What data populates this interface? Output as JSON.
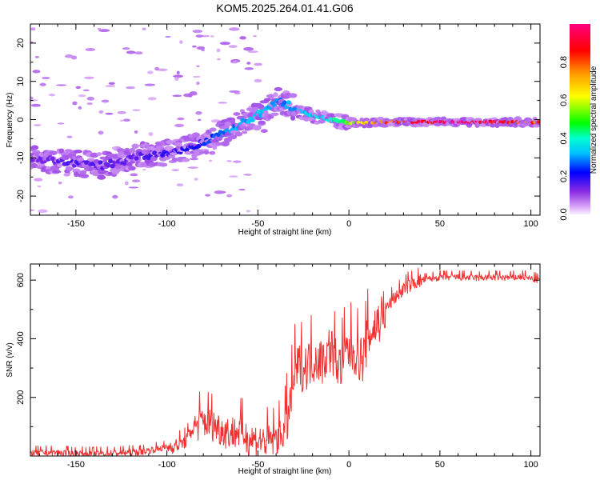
{
  "title": "KOM5.2025.264.01.41.G06",
  "colors": {
    "snr_line": "#f03030",
    "frame": "#000000",
    "background": "#ffffff"
  },
  "chart_data": [
    {
      "type": "heatmap",
      "title": "KOM5.2025.264.01.41.G06",
      "xlabel": "Height of straight line (km)",
      "ylabel": "Frequency (Hz)",
      "xlim": [
        -175,
        105
      ],
      "ylim": [
        -25,
        25
      ],
      "xticks": [
        -150,
        -100,
        -50,
        0,
        50,
        100
      ],
      "yticks": [
        -20,
        -10,
        0,
        10,
        20
      ],
      "colorbar": {
        "label": "Normalized spectral amplitude",
        "range": [
          0,
          1
        ],
        "ticks": [
          0.0,
          0.2,
          0.4,
          0.6,
          0.8
        ]
      },
      "ridge": [
        {
          "x": -172,
          "y": -10,
          "amp": 0.14
        },
        {
          "x": -160,
          "y": -11,
          "amp": 0.16
        },
        {
          "x": -148,
          "y": -11.5,
          "amp": 0.17
        },
        {
          "x": -135,
          "y": -12,
          "amp": 0.16
        },
        {
          "x": -125,
          "y": -11,
          "amp": 0.15
        },
        {
          "x": -115,
          "y": -9.5,
          "amp": 0.16
        },
        {
          "x": -105,
          "y": -9,
          "amp": 0.18
        },
        {
          "x": -95,
          "y": -8.5,
          "amp": 0.2
        },
        {
          "x": -85,
          "y": -7,
          "amp": 0.22
        },
        {
          "x": -75,
          "y": -5,
          "amp": 0.26
        },
        {
          "x": -65,
          "y": -2.5,
          "amp": 0.3
        },
        {
          "x": -55,
          "y": 0,
          "amp": 0.34
        },
        {
          "x": -45,
          "y": 2.5,
          "amp": 0.32
        },
        {
          "x": -38,
          "y": 5,
          "amp": 0.3
        },
        {
          "x": -30,
          "y": 3,
          "amp": 0.32
        },
        {
          "x": -20,
          "y": 1,
          "amp": 0.36
        },
        {
          "x": -10,
          "y": 0,
          "amp": 0.4
        },
        {
          "x": 0,
          "y": -0.8,
          "amp": 0.55
        },
        {
          "x": 10,
          "y": -0.8,
          "amp": 0.7
        },
        {
          "x": 20,
          "y": -0.7,
          "amp": 0.82
        },
        {
          "x": 30,
          "y": -0.6,
          "amp": 0.92
        },
        {
          "x": 40,
          "y": -0.6,
          "amp": 0.97
        },
        {
          "x": 50,
          "y": -0.6,
          "amp": 1.0
        },
        {
          "x": 60,
          "y": -0.6,
          "amp": 1.0
        },
        {
          "x": 70,
          "y": -0.6,
          "amp": 0.98
        },
        {
          "x": 80,
          "y": -0.6,
          "amp": 0.95
        },
        {
          "x": 90,
          "y": -0.7,
          "amp": 0.9
        },
        {
          "x": 100,
          "y": -0.8,
          "amp": 0.85
        },
        {
          "x": 105,
          "y": -0.8,
          "amp": 0.8
        }
      ]
    },
    {
      "type": "line",
      "xlabel": "Height of straight line (km)",
      "ylabel": "SNR (v/v)",
      "xlim": [
        -175,
        105
      ],
      "ylim": [
        0,
        655
      ],
      "xticks": [
        -150,
        -100,
        -50,
        0,
        50,
        100
      ],
      "yticks": [
        200,
        400,
        600
      ],
      "series": [
        {
          "name": "SNR",
          "x": [
            -175,
            -165,
            -155,
            -145,
            -135,
            -125,
            -115,
            -105,
            -95,
            -90,
            -85,
            -80,
            -75,
            -70,
            -65,
            -60,
            -55,
            -50,
            -45,
            -40,
            -35,
            -32,
            -30,
            -27,
            -25,
            -22,
            -20,
            -17,
            -15,
            -12,
            -10,
            -7,
            -5,
            -2,
            0,
            3,
            5,
            8,
            10,
            12,
            15,
            20,
            25,
            30,
            35,
            40,
            45,
            50,
            60,
            70,
            80,
            90,
            95,
            100,
            105
          ],
          "y": [
            10,
            12,
            10,
            8,
            9,
            11,
            14,
            25,
            35,
            50,
            100,
            120,
            110,
            90,
            80,
            85,
            60,
            55,
            50,
            60,
            90,
            180,
            280,
            310,
            300,
            320,
            330,
            340,
            320,
            350,
            370,
            330,
            300,
            350,
            360,
            360,
            340,
            330,
            400,
            420,
            450,
            500,
            540,
            570,
            590,
            600,
            605,
            610,
            610,
            608,
            610,
            608,
            612,
            605,
            600
          ]
        }
      ]
    }
  ]
}
